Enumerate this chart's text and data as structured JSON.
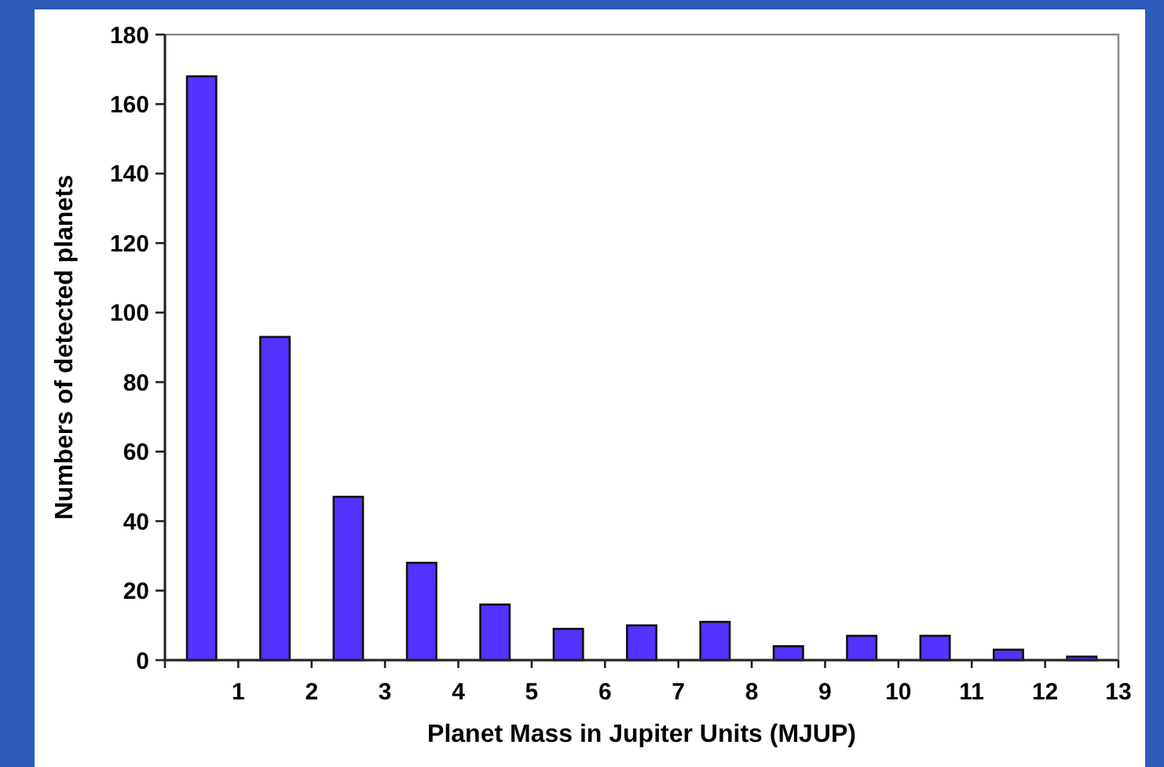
{
  "chart_data": {
    "type": "bar",
    "xlabel": "Planet Mass in Jupiter Units (MJUP)",
    "ylabel": "Numbers of detected planets",
    "x": [
      0.5,
      1.5,
      2.5,
      3.5,
      4.5,
      5.5,
      6.5,
      7.5,
      8.5,
      9.5,
      10.5,
      11.5,
      12.5
    ],
    "values": [
      168,
      93,
      47,
      28,
      16,
      9,
      10,
      11,
      4,
      7,
      7,
      3,
      1
    ],
    "color": "#5233ff",
    "xlim": [
      0,
      13
    ],
    "xticks": [
      {
        "value": 0,
        "label": null
      },
      1,
      2,
      3,
      4,
      5,
      6,
      7,
      8,
      9,
      10,
      11,
      12,
      13
    ],
    "ylim": [
      0,
      180
    ],
    "yticks": [
      0,
      20,
      40,
      60,
      80,
      100,
      120,
      140,
      160,
      180
    ],
    "grid": false
  }
}
